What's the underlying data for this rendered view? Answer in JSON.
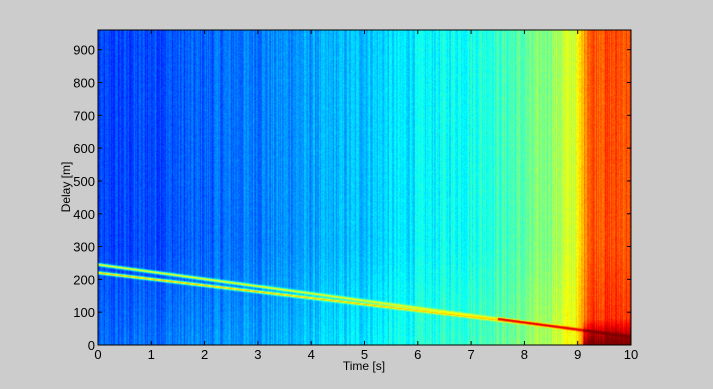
{
  "chart_data": {
    "type": "heatmap",
    "title": "",
    "xlabel": "Time [s]",
    "ylabel": "Delay [m]",
    "xlim": [
      0,
      10
    ],
    "ylim": [
      0,
      960
    ],
    "xticks": [
      0,
      1,
      2,
      3,
      4,
      5,
      6,
      7,
      8,
      9,
      10
    ],
    "yticks": [
      0,
      100,
      200,
      300,
      400,
      500,
      600,
      700,
      800,
      900
    ],
    "colormap": "jet",
    "grid": false,
    "legend": "none",
    "background_trend": {
      "time_s": [
        0,
        2,
        4,
        6,
        7,
        8,
        8.5,
        9,
        9.2,
        10
      ],
      "intensity": [
        0.18,
        0.22,
        0.28,
        0.36,
        0.4,
        0.46,
        0.52,
        0.6,
        0.8,
        0.8
      ]
    },
    "ridges": [
      {
        "time_s": [
          0,
          7.5
        ],
        "delay_m": [
          245,
          80
        ],
        "intensity": 0.62
      },
      {
        "time_s": [
          0,
          9.1
        ],
        "delay_m": [
          220,
          45
        ],
        "intensity": 0.68
      },
      {
        "time_s": [
          7.5,
          10
        ],
        "delay_m": [
          80,
          25
        ],
        "intensity": 0.92
      }
    ]
  }
}
